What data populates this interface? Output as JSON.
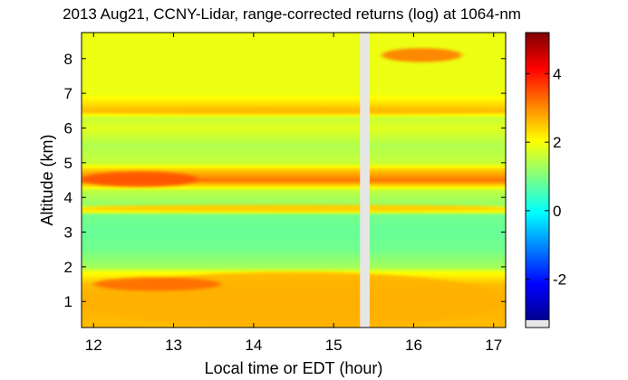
{
  "chart_data": {
    "type": "heatmap",
    "title": "2013 Aug21, CCNY-Lidar, range-corrected returns (log) at 1064-nm",
    "xlabel": "Local time or EDT (hour)",
    "ylabel": "Altitude (km)",
    "xlim": [
      11.85,
      17.15
    ],
    "ylim": [
      0.25,
      8.75
    ],
    "xticks": [
      "12",
      "13",
      "14",
      "15",
      "16",
      "17"
    ],
    "yticks": [
      "1",
      "2",
      "3",
      "4",
      "5",
      "6",
      "7",
      "8"
    ],
    "colorbar": {
      "range": [
        -3.2,
        5.2
      ],
      "ticks": [
        "-2",
        "0",
        "2",
        "4"
      ],
      "colormap": "jet"
    },
    "data_gap_hours": [
      15.33,
      15.45
    ],
    "altitude_profile_km": [
      0.3,
      1.0,
      1.5,
      1.85,
      2.0,
      2.5,
      3.0,
      3.5,
      3.65,
      3.8,
      4.2,
      4.5,
      4.8,
      5.0,
      5.5,
      6.0,
      6.3,
      6.5,
      7.0,
      7.5,
      8.0,
      8.5
    ],
    "log_return_profile": [
      2.6,
      2.7,
      2.6,
      2.0,
      1.3,
      0.9,
      0.8,
      0.9,
      2.4,
      1.2,
      1.5,
      3.2,
      2.5,
      1.6,
      1.4,
      1.8,
      1.6,
      2.6,
      1.9,
      1.9,
      1.9,
      1.9
    ],
    "features": [
      {
        "name": "boundary layer aerosol",
        "alt_km": [
          0.25,
          1.85
        ],
        "value": 2.7
      },
      {
        "name": "aerosol patches",
        "time_h": [
          12.0,
          13.6
        ],
        "alt_km": [
          1.3,
          1.7
        ],
        "value": 3.3
      },
      {
        "name": "elevated aerosol layer",
        "time_h": [
          11.85,
          13.3
        ],
        "alt_km": [
          4.3,
          4.75
        ],
        "value": 3.5
      },
      {
        "name": "thin layer",
        "alt_km": [
          3.6,
          3.8
        ],
        "value": 2.5
      },
      {
        "name": "thin layer",
        "alt_km": [
          6.4,
          6.6
        ],
        "value": 2.6
      },
      {
        "name": "upper layer",
        "time_h": [
          15.6,
          16.6
        ],
        "alt_km": [
          7.9,
          8.3
        ],
        "value": 3.2
      }
    ]
  }
}
